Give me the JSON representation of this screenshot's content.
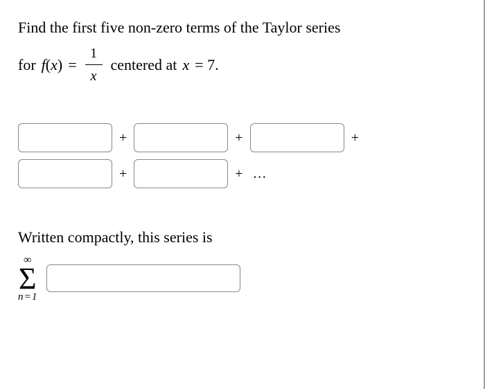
{
  "problem": {
    "line1": "Find the first five non-zero terms of the Taylor series",
    "line2_prefix": "for ",
    "func_left": "f",
    "func_arg_open": "(",
    "func_arg": "x",
    "func_arg_close": ")",
    "equals": " = ",
    "frac_num": "1",
    "frac_den": "x",
    "centered_text": " centered at ",
    "var": "x",
    "eq_val": " = 7."
  },
  "terms": {
    "plus": "+",
    "dots": "…",
    "row1": {
      "b1": "",
      "b2": "",
      "b3": ""
    },
    "row2": {
      "b4": "",
      "b5": ""
    }
  },
  "compact": {
    "label": "Written compactly, this series is",
    "sigma_top": "∞",
    "sigma": "Σ",
    "sigma_bot_n": "n",
    "sigma_bot_eq": "=",
    "sigma_bot_1": "1",
    "input": ""
  },
  "colors": {
    "text": "#000000",
    "border": "#888888",
    "bg": "#ffffff",
    "page_border": "#a0a0a0"
  }
}
